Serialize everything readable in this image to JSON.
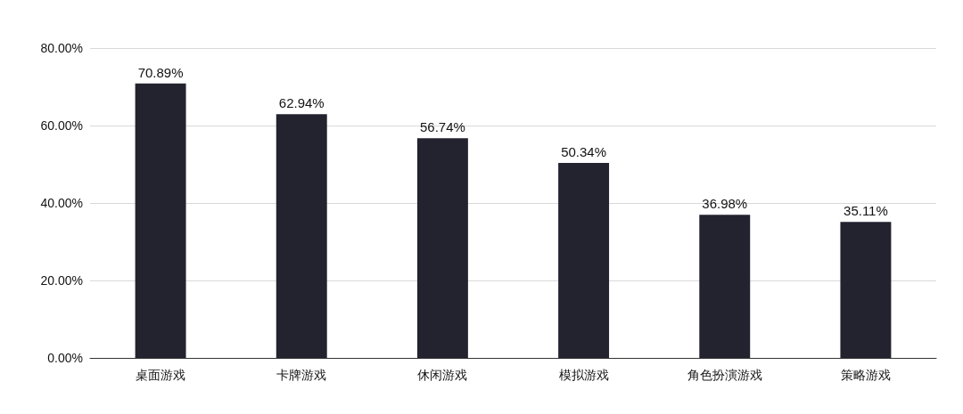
{
  "chart_data": {
    "type": "bar",
    "categories": [
      "桌面游戏",
      "卡牌游戏",
      "休闲游戏",
      "模拟游戏",
      "角色扮演游戏",
      "策略游戏"
    ],
    "values": [
      70.89,
      62.94,
      56.74,
      50.34,
      36.98,
      35.11
    ],
    "value_labels": [
      "70.89%",
      "62.94%",
      "56.74%",
      "50.34%",
      "36.98%",
      "35.11%"
    ],
    "color": "#22232f",
    "ylim": [
      0,
      80
    ],
    "yticks": [
      {
        "value": 0,
        "label": "0.00%"
      },
      {
        "value": 20,
        "label": "20.00%"
      },
      {
        "value": 40,
        "label": "40.00%"
      },
      {
        "value": 60,
        "label": "60.00%"
      },
      {
        "value": 80,
        "label": "80.00%"
      }
    ],
    "grid": "y"
  }
}
